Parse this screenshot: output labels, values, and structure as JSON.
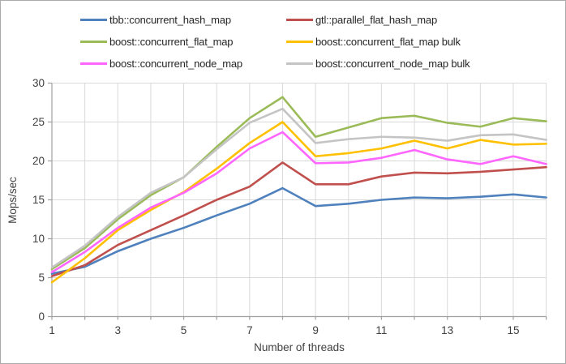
{
  "frame": {
    "background": "#FFFFFF",
    "border_color": "#ABABAB"
  },
  "chart_data": {
    "type": "line",
    "xlabel": "Number of threads",
    "ylabel": "Mops/sec",
    "x": [
      1,
      2,
      3,
      4,
      5,
      6,
      7,
      8,
      9,
      10,
      11,
      12,
      13,
      14,
      15,
      16
    ],
    "xlim": [
      1,
      16
    ],
    "ylim": [
      0,
      30
    ],
    "xtick_labels": [
      "1",
      "3",
      "5",
      "7",
      "9",
      "11",
      "13",
      "15"
    ],
    "xtick_values": [
      1,
      3,
      5,
      7,
      9,
      11,
      13,
      15
    ],
    "ytick_labels": [
      "0",
      "5",
      "10",
      "15",
      "20",
      "25",
      "30"
    ],
    "ytick_values": [
      0,
      5,
      10,
      15,
      20,
      25,
      30
    ],
    "grid": "both",
    "legend_position": "top",
    "gridline_color": "#D9D9D9",
    "axis_color": "#A0A0A0",
    "text_color": "#404040",
    "series": [
      {
        "name": "tbb::concurrent_hash_map",
        "color": "#4F81BD",
        "values": [
          5.5,
          6.4,
          8.4,
          10.0,
          11.4,
          13.0,
          14.5,
          16.5,
          14.2,
          14.5,
          15.0,
          15.3,
          15.2,
          15.4,
          15.7,
          15.3
        ]
      },
      {
        "name": "gtl::parallel_flat_hash_map",
        "color": "#C0504D",
        "values": [
          5.2,
          6.6,
          9.2,
          11.1,
          13.0,
          15.0,
          16.7,
          19.8,
          17.0,
          17.0,
          18.0,
          18.5,
          18.4,
          18.6,
          18.9,
          19.2
        ]
      },
      {
        "name": "boost::concurrent_flat_map",
        "color": "#9BBB59",
        "values": [
          6.1,
          8.8,
          12.5,
          15.6,
          17.9,
          21.8,
          25.5,
          28.2,
          23.1,
          24.3,
          25.5,
          25.8,
          24.9,
          24.4,
          25.5,
          25.1
        ]
      },
      {
        "name": "boost::concurrent_flat_map bulk",
        "color": "#FFC000",
        "values": [
          4.4,
          7.5,
          11.1,
          13.7,
          16.0,
          19.0,
          22.3,
          25.0,
          20.6,
          21.0,
          21.6,
          22.6,
          21.6,
          22.7,
          22.1,
          22.2
        ]
      },
      {
        "name": "boost::concurrent_node_map",
        "color": "#FF66FF",
        "values": [
          5.7,
          8.3,
          11.4,
          14.0,
          15.9,
          18.4,
          21.6,
          23.7,
          19.7,
          19.8,
          20.4,
          21.4,
          20.2,
          19.6,
          20.6,
          19.6
        ]
      },
      {
        "name": "boost::concurrent_node_map bulk",
        "color": "#C4C4C4",
        "values": [
          6.3,
          9.1,
          12.8,
          15.9,
          17.9,
          21.5,
          24.9,
          26.7,
          22.3,
          22.8,
          23.1,
          23.0,
          22.6,
          23.3,
          23.4,
          22.7
        ]
      }
    ]
  },
  "layout": {
    "legend_columns_x": [
      98,
      352
    ],
    "legend_rows_y": [
      23,
      50,
      77
    ]
  }
}
